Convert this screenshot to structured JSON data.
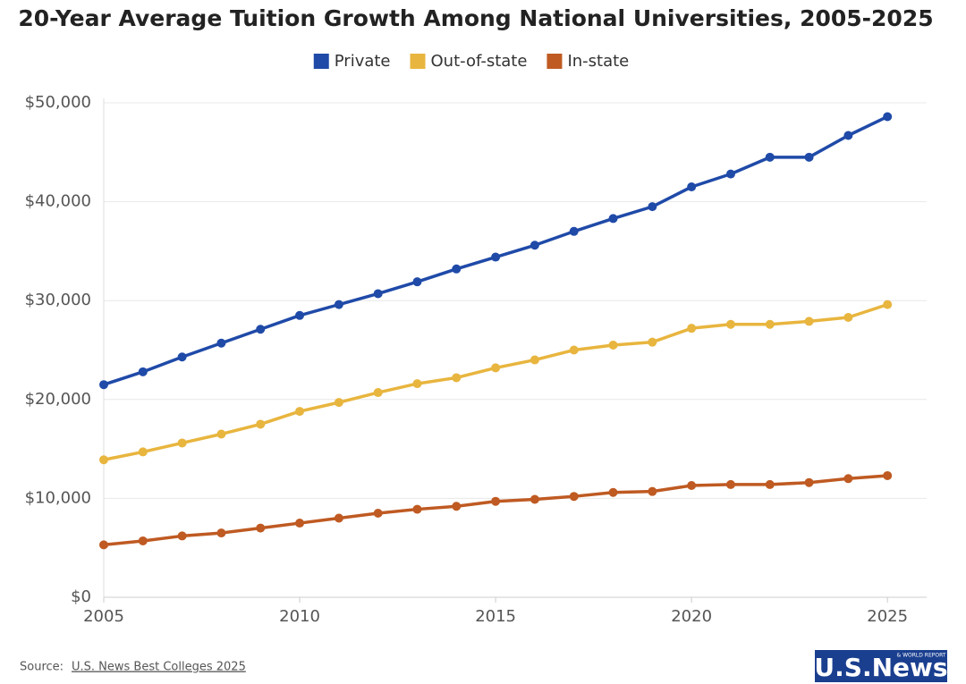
{
  "chart_data": {
    "type": "line",
    "title": "20-Year Average Tuition Growth Among National Universities, 2005-2025",
    "x": [
      2005,
      2006,
      2007,
      2008,
      2009,
      2010,
      2011,
      2012,
      2013,
      2014,
      2015,
      2016,
      2017,
      2018,
      2019,
      2020,
      2021,
      2022,
      2023,
      2024,
      2025
    ],
    "series": [
      {
        "name": "Private",
        "color": "#1f4aa8",
        "values": [
          21500,
          22800,
          24300,
          25700,
          27100,
          28500,
          29600,
          30700,
          31900,
          33200,
          34400,
          35600,
          37000,
          38300,
          39500,
          41500,
          42800,
          44500,
          44500,
          46700,
          48600
        ]
      },
      {
        "name": "Out-of-state",
        "color": "#e8b53e",
        "values": [
          13900,
          14700,
          15600,
          16500,
          17500,
          18800,
          19700,
          20700,
          21600,
          22200,
          23200,
          24000,
          25000,
          25500,
          25800,
          27200,
          27600,
          27600,
          27900,
          28300,
          29600
        ]
      },
      {
        "name": "In-state",
        "color": "#bf5a22",
        "values": [
          5300,
          5700,
          6200,
          6500,
          7000,
          7500,
          8000,
          8500,
          8900,
          9200,
          9700,
          9900,
          10200,
          10600,
          10700,
          11300,
          11400,
          11400,
          11600,
          12000,
          12300
        ]
      }
    ],
    "xlim": [
      2005,
      2026
    ],
    "xticks": [
      2005,
      2010,
      2015,
      2020,
      2025
    ],
    "ylim": [
      0,
      50000
    ],
    "yticks": [
      {
        "value": 0,
        "label": "$0"
      },
      {
        "value": 10000,
        "label": "$10,000"
      },
      {
        "value": 20000,
        "label": "$20,000"
      },
      {
        "value": 30000,
        "label": "$30,000"
      },
      {
        "value": 40000,
        "label": "$40,000"
      },
      {
        "value": 50000,
        "label": "$50,000"
      }
    ],
    "grid": true,
    "legend": "top",
    "source_label": "Source:",
    "source": "U.S. News Best Colleges 2025",
    "logo": {
      "text": "U.S.News",
      "subtext": "& WORLD REPORT"
    }
  }
}
